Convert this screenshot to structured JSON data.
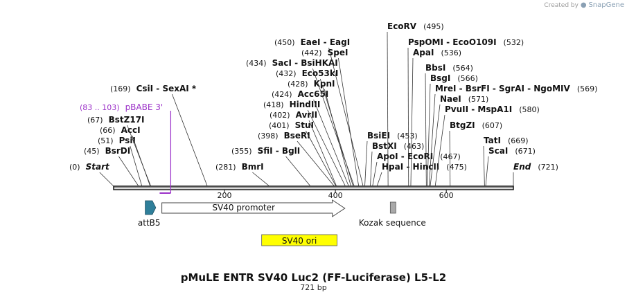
{
  "header": {
    "created_by": "Created by",
    "brand": "SnapGene"
  },
  "plasmid": {
    "name": "pMuLE ENTR SV40 Luc2 (FF-Luciferase) L5-L2",
    "length_label": "721 bp",
    "length_bp": 721
  },
  "axis": {
    "ticks": [
      {
        "bp": 200,
        "label": "200"
      },
      {
        "bp": 400,
        "label": "400"
      },
      {
        "bp": 600,
        "label": "600"
      }
    ]
  },
  "sites": [
    {
      "pos": "(0)",
      "name": "Start",
      "italic": true,
      "bp": 0
    },
    {
      "pos": "(45)",
      "name": "BsrDI",
      "bp": 45
    },
    {
      "pos": "(51)",
      "name": "PsiI",
      "bp": 51
    },
    {
      "pos": "(66)",
      "name": "AccI",
      "bp": 66
    },
    {
      "pos": "(67)",
      "name": "BstZ17I",
      "bp": 67
    },
    {
      "pos": "(169)",
      "name": "CsiI - SexAI *",
      "bp": 169
    },
    {
      "pos": "(281)",
      "name": "BmrI",
      "bp": 281
    },
    {
      "pos": "(355)",
      "name": "SfiI - BglI",
      "bp": 355
    },
    {
      "pos": "(398)",
      "name": "BseRI",
      "bp": 398
    },
    {
      "pos": "(401)",
      "name": "StuI",
      "bp": 401
    },
    {
      "pos": "(402)",
      "name": "AvrII",
      "bp": 402
    },
    {
      "pos": "(418)",
      "name": "HindIII",
      "bp": 418
    },
    {
      "pos": "(424)",
      "name": "Acc65I",
      "bp": 424
    },
    {
      "pos": "(428)",
      "name": "KpnI",
      "bp": 428
    },
    {
      "pos": "(432)",
      "name": "Eco53kI",
      "bp": 432
    },
    {
      "pos": "(434)",
      "name": "SacI - BsiHKAI",
      "bp": 434
    },
    {
      "pos": "(442)",
      "name": "SpeI",
      "bp": 442
    },
    {
      "pos": "(450)",
      "name": "EaeI - EagI",
      "bp": 450
    },
    {
      "pos": "(453)",
      "name": "BsiEI",
      "bp": 453,
      "label_right_of_name": true
    },
    {
      "pos": "(463)",
      "name": "BstXI",
      "bp": 463,
      "label_right_of_name": true
    },
    {
      "pos": "(467)",
      "name": "ApoI - EcoRI",
      "bp": 467,
      "label_right_of_name": true
    },
    {
      "pos": "(475)",
      "name": "HpaI - HincII",
      "bp": 475,
      "label_right_of_name": true
    },
    {
      "pos": "(495)",
      "name": "EcoRV",
      "bp": 495,
      "label_right_of_name": true
    },
    {
      "pos": "(532)",
      "name": "PspOMI - EcoO109I",
      "bp": 532,
      "label_right_of_name": true
    },
    {
      "pos": "(536)",
      "name": "ApaI",
      "bp": 536,
      "label_right_of_name": true
    },
    {
      "pos": "(564)",
      "name": "BbsI",
      "bp": 564,
      "label_right_of_name": true
    },
    {
      "pos": "(566)",
      "name": "BsgI",
      "bp": 566,
      "label_right_of_name": true
    },
    {
      "pos": "(569)",
      "name": "MreI - BsrFI - SgrAI - NgoMIV",
      "bp": 569,
      "label_right_of_name": true
    },
    {
      "pos": "(571)",
      "name": "NaeI",
      "bp": 571,
      "label_right_of_name": true
    },
    {
      "pos": "(580)",
      "name": "PvuII - MspA1I",
      "bp": 580,
      "label_right_of_name": true
    },
    {
      "pos": "(607)",
      "name": "BtgZI",
      "bp": 607,
      "label_right_of_name": true
    },
    {
      "pos": "(669)",
      "name": "TatI",
      "bp": 669,
      "label_right_of_name": true
    },
    {
      "pos": "(671)",
      "name": "ScaI",
      "bp": 671,
      "label_right_of_name": true
    },
    {
      "pos": "(721)",
      "name": "End",
      "italic": true,
      "bp": 721,
      "label_right_of_name": true
    }
  ],
  "primer": {
    "range": "(83 .. 103)",
    "name": "pBABE 3'",
    "start_bp": 83,
    "end_bp": 103,
    "color": "#9b30c8"
  },
  "features": [
    {
      "name": "attB5",
      "type": "arrow",
      "start_bp": 57,
      "end_bp": 76,
      "color": "#2f7f9a"
    },
    {
      "name": "SV40 promoter",
      "type": "arrow",
      "start_bp": 87,
      "end_bp": 417,
      "color": "#ffffff"
    },
    {
      "name": "Kozak sequence",
      "type": "box",
      "start_bp": 499,
      "end_bp": 509,
      "color": "#a9a9a9"
    },
    {
      "name": "SV40 ori",
      "type": "bar",
      "start_bp": 267,
      "end_bp": 403,
      "color": "#ffff00"
    }
  ]
}
